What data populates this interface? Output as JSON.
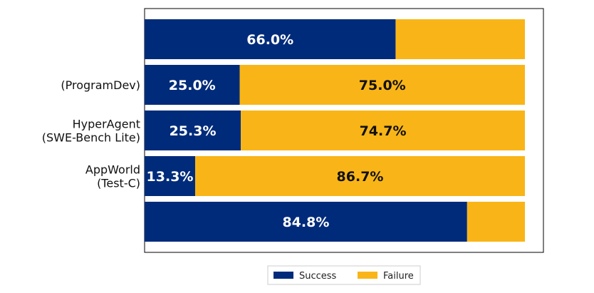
{
  "chart_data": {
    "type": "bar",
    "orientation": "horizontal",
    "stacked": true,
    "categories": [
      [
        "",
        ""
      ],
      [
        "",
        "(ProgramDev)"
      ],
      [
        "HyperAgent",
        "(SWE-Bench Lite)"
      ],
      [
        "AppWorld",
        "(Test-C)"
      ],
      [
        "",
        ""
      ]
    ],
    "series": [
      {
        "name": "Success",
        "color": "#002B7A",
        "values": [
          66.0,
          25.0,
          25.3,
          13.3,
          84.8
        ]
      },
      {
        "name": "Failure",
        "color": "#F9B517",
        "values": [
          34.0,
          75.0,
          74.7,
          86.7,
          15.2
        ]
      }
    ],
    "data_labels": [
      [
        "66.0%",
        "25.0%",
        "25.3%",
        "13.3%",
        "84.8%"
      ],
      [
        "",
        "75.0%",
        "74.7%",
        "86.7%",
        ""
      ]
    ],
    "xlim": [
      0,
      100
    ],
    "grid": false,
    "legend": {
      "position": "bottom-center",
      "entries": [
        "Success",
        "Failure"
      ]
    }
  }
}
